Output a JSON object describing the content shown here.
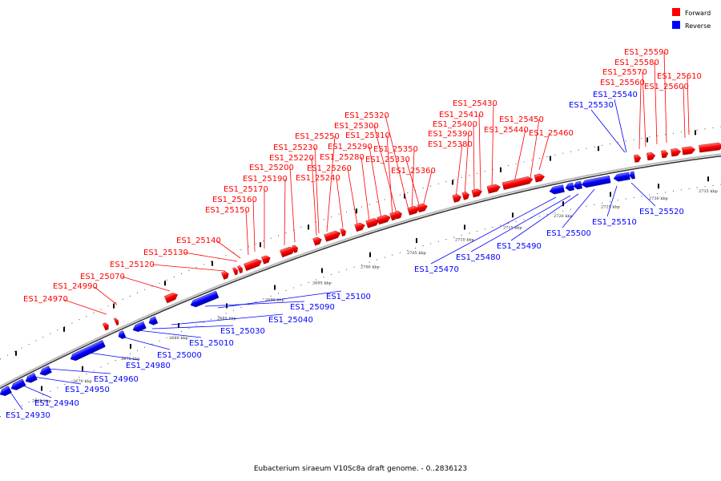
{
  "caption": "Eubacterium siraeum V10Sc8a draft genome. - 0..2836123",
  "legend": [
    {
      "label": "Forward",
      "color": "#ff0000"
    },
    {
      "label": "Reverse",
      "color": "#0000ff"
    }
  ],
  "colors": {
    "forward": "#ff0000",
    "reverse": "#0000ff",
    "backbone": "#888888"
  },
  "ticks": [
    "2665 kbp",
    "2670 kbp",
    "2675 kbp",
    "2680 kbp",
    "2685 kbp",
    "2690 kbp",
    "2695 kbp",
    "2700 kbp",
    "2705 kbp",
    "2710 kbp",
    "2715 kbp",
    "2720 kbp",
    "2725 kbp",
    "2730 kbp",
    "2735 kbp"
  ],
  "forward_labels": [
    "ES1_24970",
    "ES1_24990",
    "ES1_25070",
    "ES1_25120",
    "ES1_25130",
    "ES1_25140",
    "ES1_25150",
    "ES1_25160",
    "ES1_25170",
    "ES1_25190",
    "ES1_25200",
    "ES1_25220",
    "ES1_25230",
    "ES1_25250",
    "ES1_25240",
    "ES1_25260",
    "ES1_25280",
    "ES1_25290",
    "ES1_25310",
    "ES1_25300",
    "ES1_25320",
    "ES1_25330",
    "ES1_25350",
    "ES1_25360",
    "ES1_25380",
    "ES1_25390",
    "ES1_25400",
    "ES1_25410",
    "ES1_25430",
    "ES1_25440",
    "ES1_25450",
    "ES1_25460",
    "ES1_25560",
    "ES1_25570",
    "ES1_25580",
    "ES1_25590",
    "ES1_25600",
    "ES1_25610"
  ],
  "reverse_labels": [
    "ES1_24930",
    "ES1_24940",
    "ES1_24950",
    "ES1_24960",
    "ES1_24980",
    "ES1_25000",
    "ES1_25010",
    "ES1_25030",
    "ES1_25040",
    "ES1_25090",
    "ES1_25100",
    "ES1_25470",
    "ES1_25480",
    "ES1_25490",
    "ES1_25500",
    "ES1_25510",
    "ES1_25520",
    "ES1_25530",
    "ES1_25540"
  ]
}
